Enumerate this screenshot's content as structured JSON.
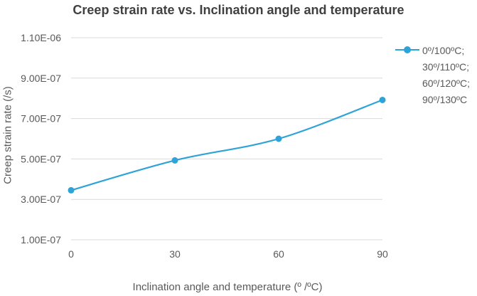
{
  "chart_data": {
    "type": "line",
    "title": "Creep strain rate vs. Inclination angle and temperature",
    "xlabel": "Inclination angle and temperature (º /ºC)",
    "ylabel": "Creep strain rate (/s)",
    "x": [
      0,
      30,
      60,
      90
    ],
    "xlim": [
      0,
      90
    ],
    "x_tick_labels": [
      "0",
      "30",
      "60",
      "90"
    ],
    "ylim": [
      1e-07,
      1.1e-06
    ],
    "y_ticks": [
      1e-07,
      3e-07,
      5e-07,
      7e-07,
      9e-07,
      1.1e-06
    ],
    "y_tick_labels": [
      "1.00E-07",
      "3.00E-07",
      "5.00E-07",
      "7.00E-07",
      "9.00E-07",
      "1.10E-06"
    ],
    "series": [
      {
        "name": "0º/100ºC;\n30º/110ºC;\n60º/120ºC;\n90º/130ºC",
        "values": [
          3.45e-07,
          4.93e-07,
          6e-07,
          7.92e-07
        ],
        "color": "#2ea3d8"
      }
    ],
    "grid": true,
    "legend_position": "right"
  }
}
